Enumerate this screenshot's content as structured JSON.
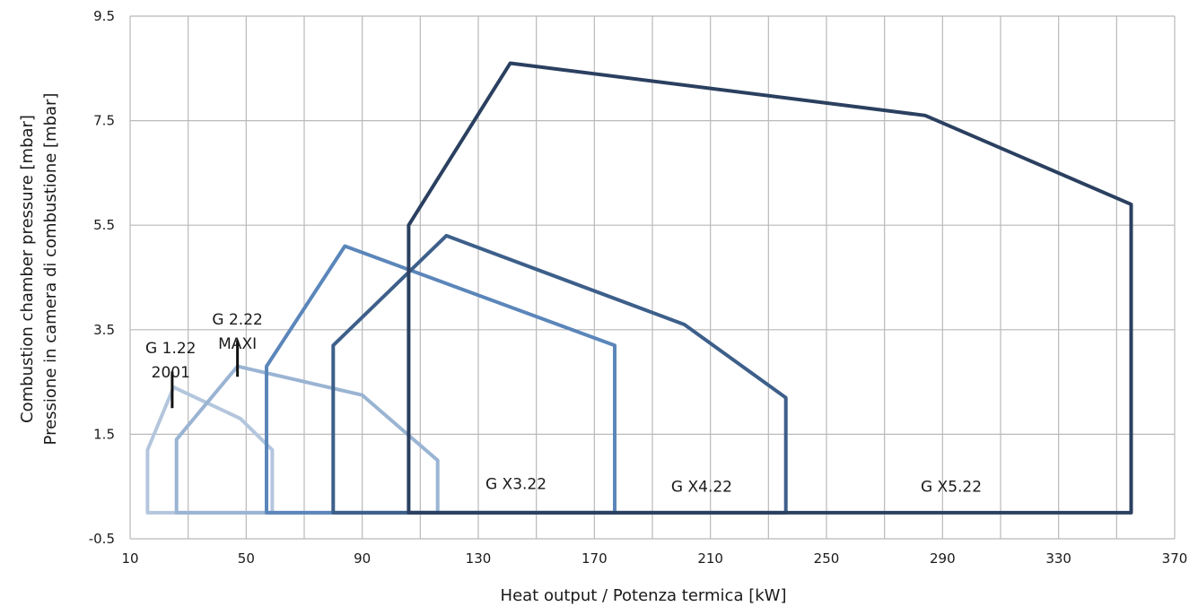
{
  "chart_data": {
    "type": "line",
    "xlabel": "Heat output / Potenza termica [kW]",
    "ylabel_line1": "Combustion chamber pressure [mbar]",
    "ylabel_line2": "Pressione in camera di combustione [mbar]",
    "xlim": [
      10,
      370
    ],
    "ylim": [
      -0.5,
      9.5
    ],
    "x_ticks": [
      10,
      50,
      90,
      130,
      170,
      210,
      250,
      290,
      330,
      370
    ],
    "y_ticks": [
      -0.5,
      1.5,
      3.5,
      5.5,
      7.5,
      9.5
    ],
    "x_tick_labels": [
      "10",
      "50",
      "90",
      "130",
      "170",
      "210",
      "250",
      "290",
      "330",
      "370"
    ],
    "y_tick_labels": [
      "-0.5",
      "1.5",
      "3.5",
      "5.5",
      "7.5",
      "9.5"
    ],
    "x_grid_step": 20,
    "grid": true,
    "series": [
      {
        "name": "G 1.22 2001",
        "label_lines": [
          "G 1.22",
          "2001"
        ],
        "label_pos": [
          24,
          3.05
        ],
        "marker": {
          "x": 24.5,
          "y_from": 2.0,
          "y_to": 2.7
        },
        "color": "#b4c6dd",
        "x": [
          16,
          16,
          25,
          48,
          59,
          59
        ],
        "y": [
          0,
          1.2,
          2.4,
          1.8,
          1.2,
          0
        ],
        "closed": true
      },
      {
        "name": "G 2.22 MAXI",
        "label_lines": [
          "G 2.22",
          "MAXI"
        ],
        "label_pos": [
          47,
          3.6
        ],
        "marker": {
          "x": 47,
          "y_from": 2.6,
          "y_to": 3.3
        },
        "color": "#9ab4d3",
        "x": [
          26,
          26,
          47,
          90,
          116,
          116
        ],
        "y": [
          0,
          1.4,
          2.8,
          2.25,
          1.0,
          0
        ],
        "closed": true
      },
      {
        "name": "G X3.22",
        "label": "G X3.22",
        "label_pos": [
          143,
          0.45
        ],
        "color": "#5b86ba",
        "x": [
          57,
          57,
          84,
          177,
          177
        ],
        "y": [
          0,
          2.8,
          5.1,
          3.2,
          0
        ],
        "closed": true
      },
      {
        "name": "G X4.22",
        "label": "G X4.22",
        "label_pos": [
          207,
          0.4
        ],
        "color": "#3d5f8a",
        "x": [
          80,
          80,
          119,
          201,
          236,
          236
        ],
        "y": [
          0,
          3.2,
          5.3,
          3.6,
          2.2,
          0
        ],
        "closed": true
      },
      {
        "name": "G X5.22",
        "label": "G X5.22",
        "label_pos": [
          293,
          0.4
        ],
        "color": "#2b4060",
        "x": [
          106,
          106,
          141,
          284,
          355,
          355
        ],
        "y": [
          0,
          5.5,
          8.6,
          7.6,
          5.9,
          0
        ],
        "closed": true
      }
    ]
  }
}
